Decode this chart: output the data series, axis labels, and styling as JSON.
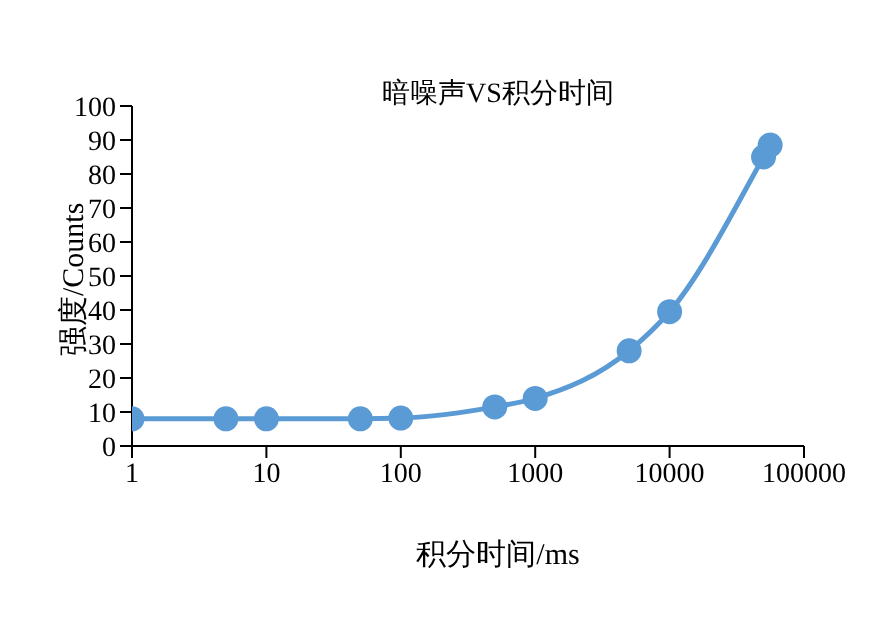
{
  "chart_data": {
    "type": "line",
    "title": "暗噪声VS积分时间",
    "xlabel": "积分时间/ms",
    "ylabel": "强度/Counts",
    "x": [
      1,
      5,
      10,
      50,
      100,
      500,
      1000,
      5000,
      10000,
      50000,
      56000
    ],
    "series": [
      {
        "color": "#5b9bd5",
        "values": [
          8,
          8,
          8,
          8,
          8.2,
          11.5,
          14,
          28,
          39.5,
          85,
          88.5
        ]
      }
    ],
    "log": "x",
    "xlim": [
      1,
      100000
    ],
    "xticks": [
      1,
      10,
      100,
      1000,
      10000,
      100000
    ],
    "ylim": [
      0,
      100
    ],
    "yticks": [
      0,
      10,
      20,
      30,
      40,
      50,
      60,
      70,
      80,
      90,
      100
    ],
    "grid": false,
    "legend": false,
    "marker": "circle",
    "line_style": "solid"
  }
}
